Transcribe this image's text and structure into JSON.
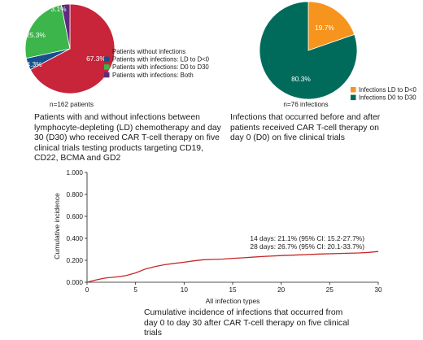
{
  "colors": {
    "red": "#c8243a",
    "blue": "#17508f",
    "green": "#3cb54a",
    "purple": "#5e2b80",
    "orange": "#f7941d",
    "teal": "#006b5a",
    "curve": "#c62828"
  },
  "chart_data": [
    {
      "type": "pie",
      "slices": [
        {
          "label": "Patients without infections",
          "value": 67.3,
          "display": "67.3%",
          "color": "#c8243a"
        },
        {
          "label": "Patients with infections: LD to D<0",
          "value": 4.3,
          "display": "4.3%",
          "color": "#17508f"
        },
        {
          "label": "Patients with infections: D0 to D30",
          "value": 25.3,
          "display": "25.3%",
          "color": "#3cb54a"
        },
        {
          "label": "Patients with infections: Both",
          "value": 3.1,
          "display": "3.1%",
          "color": "#5e2b80"
        }
      ],
      "n_label": "n=162 patients",
      "legend_placement": "right",
      "caption": "Patients with and without infections between lymphocyte-depleting (LD) chemotherapy and day 30 (D30) who received CAR T-cell therapy on five clinical trials testing products targeting CD19, CD22, BCMA and GD2"
    },
    {
      "type": "pie",
      "slices": [
        {
          "label": "Infections LD to D<0",
          "value": 19.7,
          "display": "19.7%",
          "color": "#f7941d"
        },
        {
          "label": "Infections D0 to D30",
          "value": 80.3,
          "display": "80.3%",
          "color": "#006b5a"
        }
      ],
      "n_label": "n=76 infections",
      "legend_placement": "bottom-right",
      "caption": "Infections that occurred before and after patients received CAR T-cell therapy on day 0 (D0) on five clinical trials"
    },
    {
      "type": "line",
      "xlabel": "All infection types",
      "ylabel": "Cumulative incidence",
      "xlim": [
        0,
        30
      ],
      "ylim": [
        0,
        1
      ],
      "xticks": [
        "0",
        "5",
        "10",
        "15",
        "20",
        "25",
        "30"
      ],
      "yticks": [
        "0.000",
        "0.200",
        "0.400",
        "0.600",
        "0.800",
        "1.000"
      ],
      "grid": false,
      "series": [
        {
          "x": [
            0,
            0.5,
            1,
            1.5,
            2,
            3,
            4,
            5,
            6,
            7,
            8,
            9,
            10,
            11,
            12,
            13,
            14,
            15,
            16,
            17,
            18,
            20,
            22,
            24,
            26,
            28,
            29,
            30
          ],
          "y": [
            0,
            0.012,
            0.022,
            0.032,
            0.04,
            0.048,
            0.06,
            0.085,
            0.12,
            0.142,
            0.16,
            0.172,
            0.182,
            0.195,
            0.205,
            0.208,
            0.211,
            0.218,
            0.222,
            0.228,
            0.234,
            0.243,
            0.25,
            0.257,
            0.262,
            0.267,
            0.272,
            0.28
          ]
        }
      ],
      "annotations": [
        "14 days: 21.1% (95% CI: 15.2-27.7%)",
        "28 days: 26.7% (95% CI: 20.1-33.7%)"
      ],
      "caption": "Cumulative incidence of infections that occurred from day 0 to day 30 after CAR T-cell therapy on five clinical trials"
    }
  ]
}
